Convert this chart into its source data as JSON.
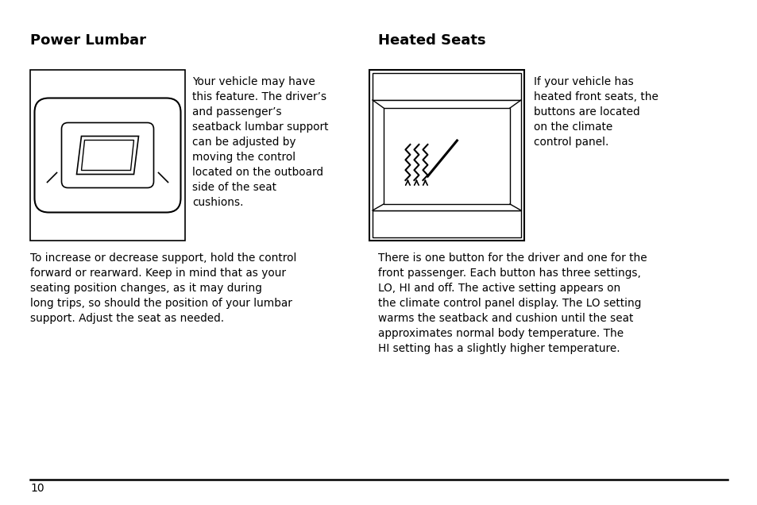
{
  "bg_color": "#ffffff",
  "text_color": "#000000",
  "title_left": "Power Lumbar",
  "title_right": "Heated Seats",
  "left_desc": "Your vehicle may have\nthis feature. The driver’s\nand passenger’s\nseatback lumbar support\ncan be adjusted by\nmoving the control\nlocated on the outboard\nside of the seat\ncushions.",
  "left_body": "To increase or decrease support, hold the control\nforward or rearward. Keep in mind that as your\nseating position changes, as it may during\nlong trips, so should the position of your lumbar\nsupport. Adjust the seat as needed.",
  "right_desc": "If your vehicle has\nheated front seats, the\nbuttons are located\non the climate\ncontrol panel.",
  "right_body": "There is one button for the driver and one for the\nfront passenger. Each button has three settings,\nLO, HI and off. The active setting appears on\nthe climate control panel display. The LO setting\nwarms the seatback and cushion until the seat\napproximates normal body temperature. The\nHI setting has a slightly higher temperature.",
  "page_number": "10",
  "title_fontsize": 13,
  "body_fontsize": 9.8,
  "desc_fontsize": 9.8
}
